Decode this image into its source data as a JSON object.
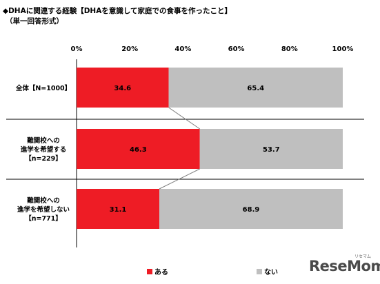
{
  "title": "◆DHAに関連する経験【DHAを意識して家庭での食事を作ったこと】",
  "subtitle": "（単一回答形式）",
  "brand": "ReseMom",
  "brand_small": "リセマム",
  "chart_data": {
    "type": "bar",
    "orientation": "horizontal",
    "stacked": true,
    "percent_axis": true,
    "categories": [
      [
        "全体【N=1000】"
      ],
      [
        "難関校への",
        "進学を希望する",
        "【n=229】"
      ],
      [
        "難関校への",
        "進学を希望しない",
        "【n=771】"
      ]
    ],
    "series": [
      {
        "name": "ある",
        "values": [
          34.6,
          46.3,
          31.1
        ],
        "color": "#ee1c25"
      },
      {
        "name": "ない",
        "values": [
          65.4,
          53.7,
          68.9
        ],
        "color": "#bfbfbf"
      }
    ],
    "value_labels": [
      [
        "34.6",
        "46.3",
        "31.1"
      ],
      [
        "65.4",
        "53.7",
        "68.9"
      ]
    ],
    "xlim": [
      0,
      100
    ],
    "xticks": [
      "0%",
      "20%",
      "40%",
      "60%",
      "80%",
      "100%"
    ],
    "legend_position": "bottom",
    "series_connector_lines": true,
    "grid": false
  }
}
